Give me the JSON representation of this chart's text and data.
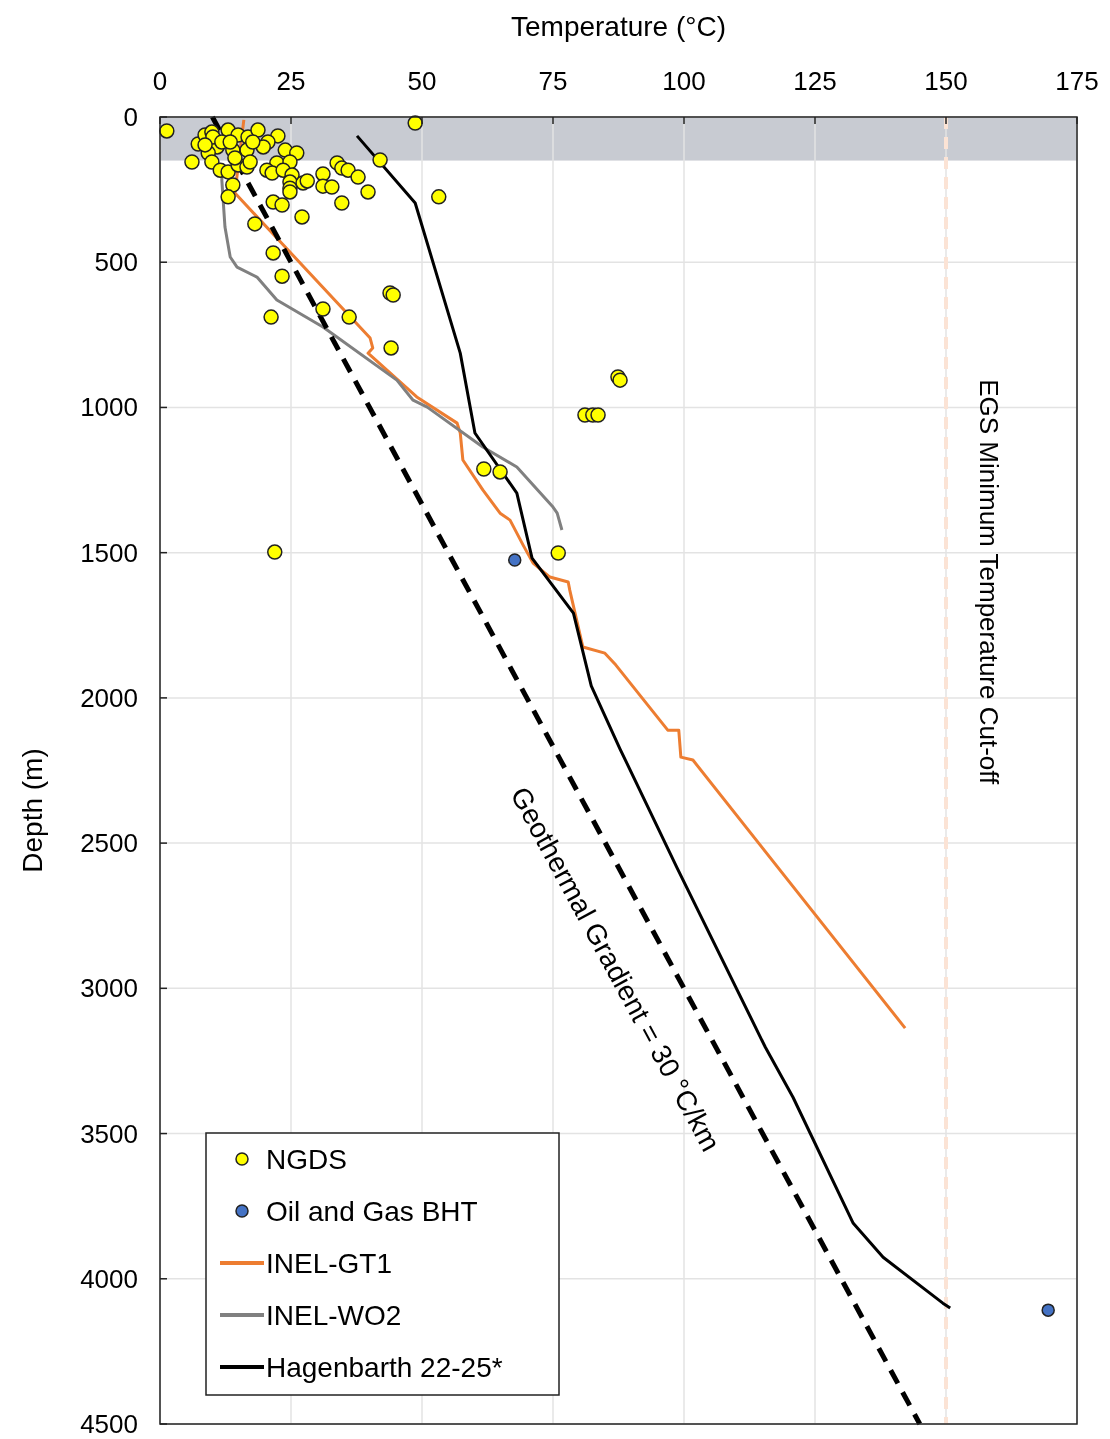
{
  "chart_data": {
    "type": "scatter",
    "xlabel": "Temperature (°C)",
    "ylabel": "Depth (m)",
    "xlim": [
      0,
      175
    ],
    "xticks": [
      0,
      25,
      50,
      75,
      100,
      125,
      150,
      175
    ],
    "ylim": [
      4500,
      0
    ],
    "yticks": [
      0,
      500,
      1000,
      1500,
      2000,
      2500,
      3000,
      3500,
      4000,
      4500
    ],
    "grid": true,
    "legend": "bottom left",
    "annotations": [
      "Geothermal Gradient = 30 °C/km"
    ],
    "ref_lines": [
      {
        "axis": "x",
        "value": 150,
        "label": "EGS Minimum Temperature Cut-off",
        "color": "#fbe3d5",
        "line_style": "dashed"
      }
    ],
    "bands": [
      {
        "axis": "y",
        "from": 0,
        "to": 150,
        "color": "#c8cbd2"
      }
    ],
    "series": [
      {
        "name": "NGDS",
        "marker": "circle",
        "color": "#ffff00",
        "x": [
          1.3,
          48.7,
          6.1,
          7.3,
          8.6,
          9.9,
          13.0,
          14.9,
          16.8,
          18.7,
          22.5,
          23.9,
          26.1,
          20.6,
          19.7,
          16.6,
          13.9,
          10.9,
          9.2,
          9.9,
          11.5,
          13.0,
          14.9,
          16.6,
          22.3,
          24.8,
          20.4,
          21.4,
          23.5,
          25.2,
          24.8,
          24.8,
          24.8,
          27.3,
          28.1,
          31.1,
          31.1,
          32.8,
          33.8,
          34.7,
          35.9,
          37.8,
          39.7,
          42.0,
          34.7,
          53.2,
          13.9,
          13.0,
          21.6,
          23.3,
          27.1,
          18.1,
          21.6,
          23.3,
          43.9,
          44.5,
          31.1,
          36.1,
          21.2,
          44.1,
          10.1,
          11.8,
          8.6,
          13.4,
          17.7,
          14.3,
          17.2,
          87.4,
          87.8,
          81.1,
          82.6,
          83.6,
          61.8,
          64.9,
          21.9,
          76.0
        ],
        "values": [
          48,
          21,
          155,
          93,
          62,
          52,
          45,
          62,
          69,
          45,
          65,
          114,
          124,
          86,
          103,
          114,
          114,
          103,
          124,
          155,
          183,
          189,
          165,
          172,
          158,
          155,
          183,
          193,
          183,
          200,
          224,
          245,
          258,
          227,
          220,
          196,
          238,
          241,
          158,
          176,
          183,
          207,
          258,
          148,
          296,
          275,
          234,
          275,
          293,
          303,
          344,
          368,
          468,
          548,
          606,
          613,
          661,
          689,
          689,
          795,
          69,
          86,
          96,
          86,
          86,
          141,
          155,
          895,
          906,
          1026,
          1026,
          1026,
          1212,
          1222,
          1498,
          1501
        ]
      },
      {
        "name": "Oil and Gas BHT",
        "marker": "circle",
        "color": "#4472c4",
        "x": [
          67.7,
          169.5
        ],
        "values": [
          1525,
          4108
        ]
      },
      {
        "name": "INEL-GT1",
        "type": "line",
        "color": "#ed7d31",
        "x": [
          16.0,
          14.3,
          40.1,
          40.6,
          39.7,
          49.0,
          56.7,
          57.3,
          57.8,
          61.6,
          64.9,
          66.8,
          69.3,
          71.2,
          74.4,
          77.9,
          78.2,
          80.7,
          84.9,
          87.0,
          96.9,
          99.0,
          99.4,
          101.7,
          142.2
        ],
        "values": [
          10,
          262,
          761,
          795,
          813,
          964,
          1054,
          1088,
          1181,
          1284,
          1364,
          1388,
          1474,
          1536,
          1584,
          1601,
          1629,
          1825,
          1846,
          1887,
          2111,
          2111,
          2204,
          2214,
          3137
        ]
      },
      {
        "name": "INEL-WO2",
        "type": "line",
        "color": "#808080",
        "x": [
          12.0,
          11.8,
          12.4,
          13.4,
          14.7,
          18.5,
          22.3,
          31.1,
          45.2,
          48.3,
          51.0,
          61.6,
          68.1,
          75.0,
          75.8,
          76.7
        ],
        "values": [
          160,
          217,
          379,
          482,
          517,
          551,
          630,
          723,
          906,
          975,
          999,
          1136,
          1205,
          1343,
          1364,
          1422
        ]
      },
      {
        "name": "Hagenbarth 22-25*",
        "type": "line",
        "color": "#000000",
        "x": [
          37.6,
          48.7,
          57.3,
          60.1,
          68.1,
          71.0,
          78.9,
          82.3,
          87.8,
          98.7,
          115.5,
          120.8,
          132.3,
          138.0,
          149.4,
          150.8
        ],
        "values": [
          65,
          296,
          813,
          1088,
          1295,
          1519,
          1708,
          1959,
          2176,
          2586,
          3202,
          3375,
          3809,
          3926,
          4084,
          4101
        ]
      },
      {
        "type": "line",
        "color": "#000000",
        "line_style": "dashed",
        "x": [
          10,
          145
        ],
        "values": [
          0,
          4500
        ]
      }
    ]
  }
}
